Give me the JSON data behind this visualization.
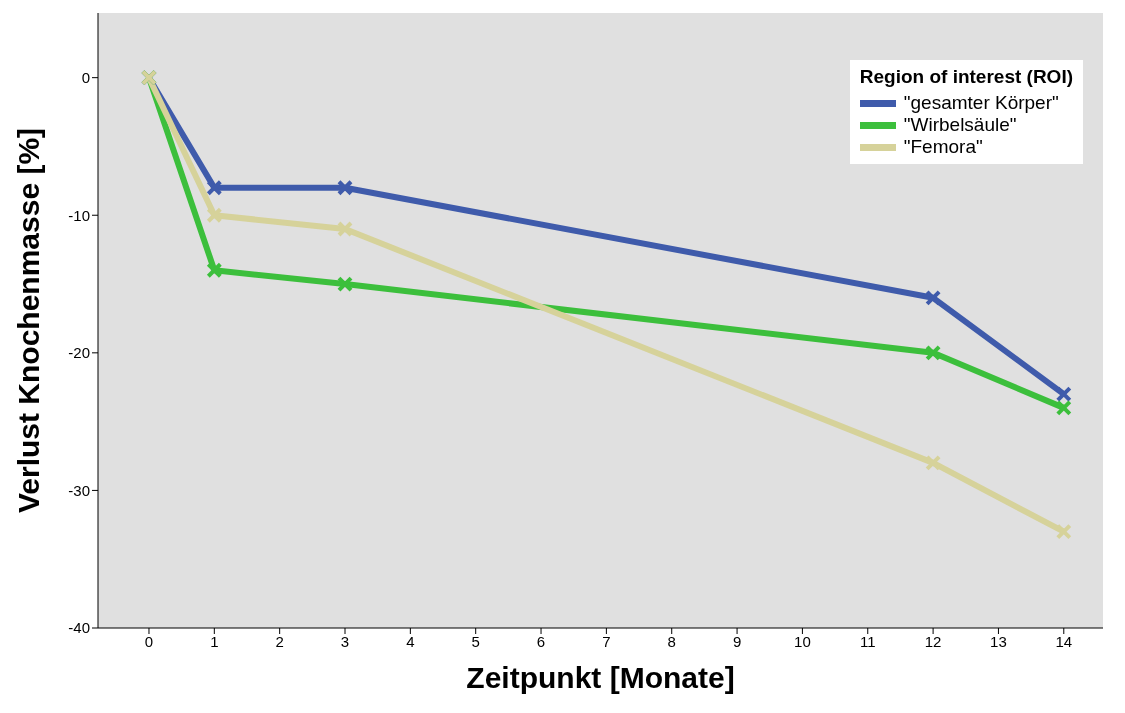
{
  "chart_data": {
    "type": "line",
    "xlabel": "Zeitpunkt [Monate]",
    "ylabel": "Verlust Knochenmasse [%]",
    "legend_title": "Region of interest (ROI)",
    "x": [
      0,
      1,
      3,
      12,
      14
    ],
    "series": [
      {
        "name": "\"gesamter Körper\"",
        "color": "#3f5bab",
        "values": [
          0,
          -8,
          -8,
          -16,
          -23
        ]
      },
      {
        "name": "\"Wirbelsäule\"",
        "color": "#3cbf3c",
        "values": [
          0,
          -14,
          -15,
          -20,
          -24
        ]
      },
      {
        "name": "\"Femora\"",
        "color": "#d6d29a",
        "values": [
          0,
          -10,
          -11,
          -28,
          -33
        ]
      }
    ],
    "xlim": [
      -0.78,
      14.6
    ],
    "xticks": [
      0,
      1,
      2,
      3,
      4,
      5,
      6,
      7,
      8,
      9,
      10,
      11,
      12,
      13,
      14
    ],
    "ylim": [
      -40,
      4.7
    ],
    "yticks": [
      -40,
      -30,
      -20,
      -10,
      0
    ],
    "grid": false,
    "legend": "top right",
    "marker": "cross",
    "line_style": "solid"
  }
}
